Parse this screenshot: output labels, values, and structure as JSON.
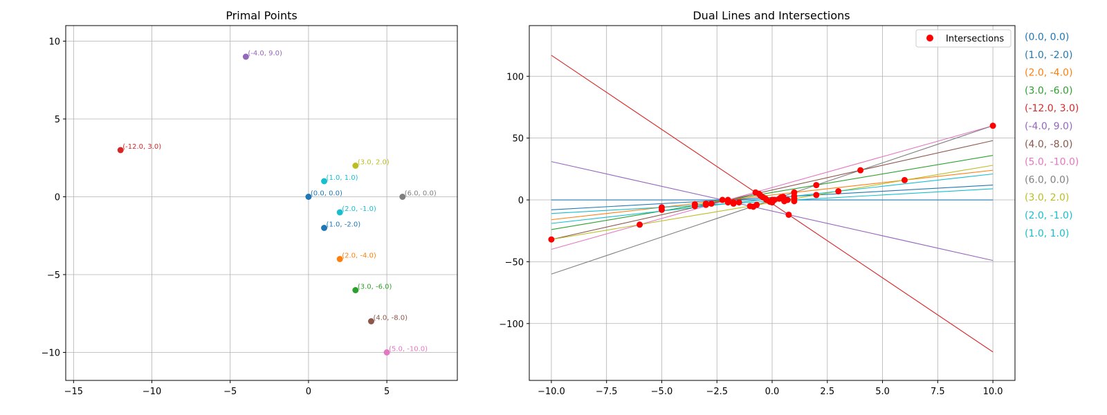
{
  "chart_data": [
    {
      "type": "scatter",
      "title": "Primal Points",
      "xlabel": "",
      "ylabel": "",
      "xlim": [
        -15.5,
        9.5
      ],
      "ylim": [
        -11.8,
        11.0
      ],
      "xticks": [
        -15,
        -10,
        -5,
        0,
        5
      ],
      "yticks": [
        -10,
        -5,
        0,
        5,
        10
      ],
      "xtick_labels": [
        "−15",
        "−10",
        "−5",
        "0",
        "5"
      ],
      "ytick_labels": [
        "−10",
        "−5",
        "0",
        "5",
        "10"
      ],
      "grid": true,
      "points": [
        {
          "x": 0,
          "y": 0,
          "label": "(0.0, 0.0)",
          "color": "#1f77b4"
        },
        {
          "x": 1,
          "y": -2,
          "label": "(1.0, -2.0)",
          "color": "#1f77b4"
        },
        {
          "x": 2,
          "y": -4,
          "label": "(2.0, -4.0)",
          "color": "#ff7f0e"
        },
        {
          "x": 3,
          "y": -6,
          "label": "(3.0, -6.0)",
          "color": "#2ca02c"
        },
        {
          "x": -12,
          "y": 3,
          "label": "(-12.0, 3.0)",
          "color": "#d62728"
        },
        {
          "x": -4,
          "y": 9,
          "label": "(-4.0, 9.0)",
          "color": "#9467bd"
        },
        {
          "x": 4,
          "y": -8,
          "label": "(4.0, -8.0)",
          "color": "#8c564b"
        },
        {
          "x": 5,
          "y": -10,
          "label": "(5.0, -10.0)",
          "color": "#e377c2"
        },
        {
          "x": 6,
          "y": 0,
          "label": "(6.0, 0.0)",
          "color": "#7f7f7f"
        },
        {
          "x": 3,
          "y": 2,
          "label": "(3.0, 2.0)",
          "color": "#bcbd22"
        },
        {
          "x": 2,
          "y": -1,
          "label": "(2.0, -1.0)",
          "color": "#17becf"
        },
        {
          "x": 1,
          "y": 1,
          "label": "(1.0, 1.0)",
          "color": "#17becf"
        }
      ]
    },
    {
      "type": "line",
      "title": "Dual Lines and Intersections",
      "xlabel": "",
      "ylabel": "",
      "xlim": [
        -11.0,
        11.0
      ],
      "ylim": [
        -146,
        141
      ],
      "xticks": [
        -10,
        -7.5,
        -5,
        -2.5,
        0,
        2.5,
        5,
        7.5,
        10
      ],
      "yticks": [
        -100,
        -50,
        0,
        50,
        100
      ],
      "xtick_labels": [
        "−10.0",
        "−7.5",
        "−5.0",
        "−2.5",
        "0.0",
        "2.5",
        "5.0",
        "7.5",
        "10.0"
      ],
      "ytick_labels": [
        "−100",
        "−50",
        "0",
        "50",
        "100"
      ],
      "grid": true,
      "x_range": [
        -10,
        10
      ],
      "lines": [
        {
          "slope": 0,
          "intercept": 0,
          "color": "#1f77b4"
        },
        {
          "slope": 1,
          "intercept": 2,
          "color": "#1f77b4"
        },
        {
          "slope": 2,
          "intercept": 4,
          "color": "#ff7f0e"
        },
        {
          "slope": 3,
          "intercept": 6,
          "color": "#2ca02c"
        },
        {
          "slope": -12,
          "intercept": -3,
          "color": "#d62728"
        },
        {
          "slope": -4,
          "intercept": -9,
          "color": "#9467bd"
        },
        {
          "slope": 4,
          "intercept": 8,
          "color": "#8c564b"
        },
        {
          "slope": 5,
          "intercept": 10,
          "color": "#e377c2"
        },
        {
          "slope": 6,
          "intercept": 0,
          "color": "#7f7f7f"
        },
        {
          "slope": 3,
          "intercept": -2,
          "color": "#bcbd22"
        },
        {
          "slope": 2,
          "intercept": 1,
          "color": "#17becf"
        },
        {
          "slope": 1,
          "intercept": -1,
          "color": "#17becf"
        }
      ],
      "intersections": {
        "name": "Intersections",
        "color": "#ff0000",
        "points": [
          [
            -10,
            -32
          ],
          [
            -6,
            -20
          ],
          [
            -5,
            -6
          ],
          [
            -5,
            -8
          ],
          [
            -3.5,
            -5
          ],
          [
            -3.5,
            -3.5
          ],
          [
            -3,
            -4
          ],
          [
            -3,
            -3
          ],
          [
            -2.75,
            -3
          ],
          [
            -2.25,
            0
          ],
          [
            -2.0,
            -0.5
          ],
          [
            -2.0,
            0
          ],
          [
            -2.0,
            -2
          ],
          [
            -1.75,
            -2
          ],
          [
            -1.75,
            -3
          ],
          [
            -1.5,
            -2
          ],
          [
            -1.0,
            -5
          ],
          [
            -0.85,
            -5.5
          ],
          [
            -0.75,
            6
          ],
          [
            -0.7,
            -4
          ],
          [
            -0.6,
            5
          ],
          [
            -0.55,
            4
          ],
          [
            -0.5,
            3
          ],
          [
            -0.4,
            2
          ],
          [
            -0.3,
            1
          ],
          [
            -0.25,
            0
          ],
          [
            -0.1,
            -1.5
          ],
          [
            0.0,
            -2
          ],
          [
            0.0,
            0
          ],
          [
            0.1,
            0
          ],
          [
            0.33,
            1
          ],
          [
            0.4,
            2
          ],
          [
            0.5,
            2.5
          ],
          [
            0.55,
            -1
          ],
          [
            0.7,
            0
          ],
          [
            0.75,
            -12
          ],
          [
            1.0,
            -1
          ],
          [
            1.0,
            1
          ],
          [
            1.0,
            3
          ],
          [
            1.0,
            6
          ],
          [
            2.0,
            4
          ],
          [
            2.0,
            12
          ],
          [
            3.0,
            7
          ],
          [
            4.0,
            24
          ],
          [
            6.0,
            16
          ],
          [
            10.0,
            60
          ]
        ]
      },
      "legend": {
        "placement": "upper right",
        "entries": [
          "Intersections"
        ]
      },
      "side_labels": [
        {
          "text": "(0.0, 0.0)",
          "color": "#1f77b4"
        },
        {
          "text": "(1.0, -2.0)",
          "color": "#1f77b4"
        },
        {
          "text": "(2.0, -4.0)",
          "color": "#ff7f0e"
        },
        {
          "text": "(3.0, -6.0)",
          "color": "#2ca02c"
        },
        {
          "text": "(-12.0, 3.0)",
          "color": "#d62728"
        },
        {
          "text": "(-4.0, 9.0)",
          "color": "#9467bd"
        },
        {
          "text": "(4.0, -8.0)",
          "color": "#8c564b"
        },
        {
          "text": "(5.0, -10.0)",
          "color": "#e377c2"
        },
        {
          "text": "(6.0, 0.0)",
          "color": "#7f7f7f"
        },
        {
          "text": "(3.0, 2.0)",
          "color": "#bcbd22"
        },
        {
          "text": "(2.0, -1.0)",
          "color": "#17becf"
        },
        {
          "text": "(1.0, 1.0)",
          "color": "#17becf"
        }
      ]
    }
  ]
}
